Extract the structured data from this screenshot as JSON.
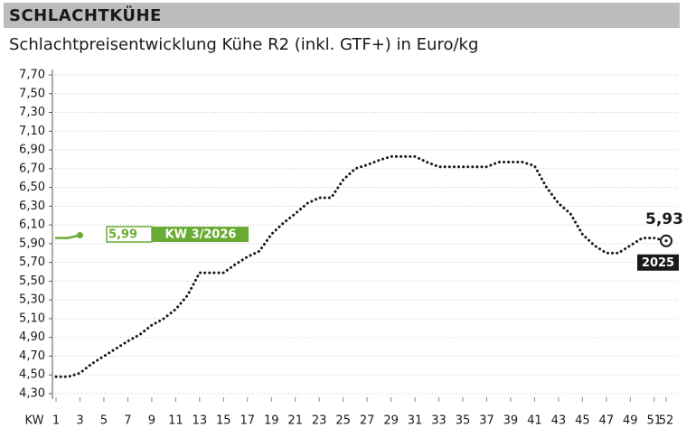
{
  "chart_data": {
    "type": "line",
    "header": "SCHLACHTKÜHE",
    "title": "Schlachtpreisentwicklung Kühe R2 (inkl. GTF+) in Euro/kg",
    "x_label": "KW",
    "xlim": [
      1,
      52
    ],
    "xticks": [
      1,
      3,
      5,
      7,
      9,
      11,
      13,
      15,
      17,
      19,
      21,
      23,
      25,
      27,
      29,
      31,
      33,
      35,
      37,
      39,
      41,
      43,
      45,
      47,
      49,
      51,
      52
    ],
    "ylim": [
      4.3,
      7.7
    ],
    "yticks": [
      {
        "value": 4.3,
        "label": "4,30"
      },
      {
        "value": 4.5,
        "label": "4,50"
      },
      {
        "value": 4.7,
        "label": "4,70"
      },
      {
        "value": 4.9,
        "label": "4,90"
      },
      {
        "value": 5.1,
        "label": "5,10"
      },
      {
        "value": 5.3,
        "label": "5,30"
      },
      {
        "value": 5.5,
        "label": "5,50"
      },
      {
        "value": 5.7,
        "label": "5,70"
      },
      {
        "value": 5.9,
        "label": "5,90"
      },
      {
        "value": 6.1,
        "label": "6,10"
      },
      {
        "value": 6.3,
        "label": "6,30"
      },
      {
        "value": 6.5,
        "label": "6,50"
      },
      {
        "value": 6.7,
        "label": "6,70"
      },
      {
        "value": 6.9,
        "label": "6,90"
      },
      {
        "value": 7.1,
        "label": "7,10"
      },
      {
        "value": 7.3,
        "label": "7,30"
      },
      {
        "value": 7.5,
        "label": "7,50"
      },
      {
        "value": 7.7,
        "label": "7,70"
      }
    ],
    "grid": true,
    "series": [
      {
        "name": "2025",
        "color": "#1a1a1a",
        "style": "dotted",
        "x": [
          1,
          2,
          3,
          4,
          5,
          6,
          7,
          8,
          9,
          10,
          11,
          12,
          13,
          14,
          15,
          16,
          17,
          18,
          19,
          20,
          21,
          22,
          23,
          24,
          25,
          26,
          27,
          28,
          29,
          30,
          31,
          32,
          33,
          34,
          35,
          36,
          37,
          38,
          39,
          40,
          41,
          42,
          43,
          44,
          45,
          46,
          47,
          48,
          49,
          50,
          51,
          52
        ],
        "values": [
          4.48,
          4.48,
          4.52,
          4.62,
          4.7,
          4.78,
          4.86,
          4.93,
          5.03,
          5.1,
          5.2,
          5.35,
          5.59,
          5.59,
          5.59,
          5.68,
          5.76,
          5.82,
          6.0,
          6.12,
          6.22,
          6.33,
          6.39,
          6.39,
          6.58,
          6.7,
          6.74,
          6.79,
          6.83,
          6.83,
          6.83,
          6.77,
          6.72,
          6.72,
          6.72,
          6.72,
          6.72,
          6.77,
          6.77,
          6.77,
          6.73,
          6.5,
          6.33,
          6.22,
          6.0,
          5.88,
          5.8,
          5.8,
          5.88,
          5.96,
          5.96,
          5.93
        ],
        "value_labels": [
          null,
          null,
          null,
          null,
          null,
          null,
          null,
          null,
          null,
          null,
          null,
          null,
          null,
          null,
          null,
          null,
          null,
          null,
          null,
          null,
          null,
          null,
          null,
          null,
          null,
          null,
          null,
          null,
          null,
          null,
          null,
          null,
          null,
          null,
          null,
          null,
          null,
          null,
          null,
          null,
          null,
          null,
          null,
          null,
          null,
          null,
          null,
          null,
          null,
          null,
          null,
          "5,93"
        ]
      },
      {
        "name": "KW 3/2026",
        "color": "#6aab34",
        "style": "solid",
        "x": [
          1,
          2,
          3
        ],
        "values": [
          5.96,
          5.96,
          5.99
        ],
        "value_labels": [
          null,
          null,
          "5,99"
        ]
      }
    ]
  }
}
